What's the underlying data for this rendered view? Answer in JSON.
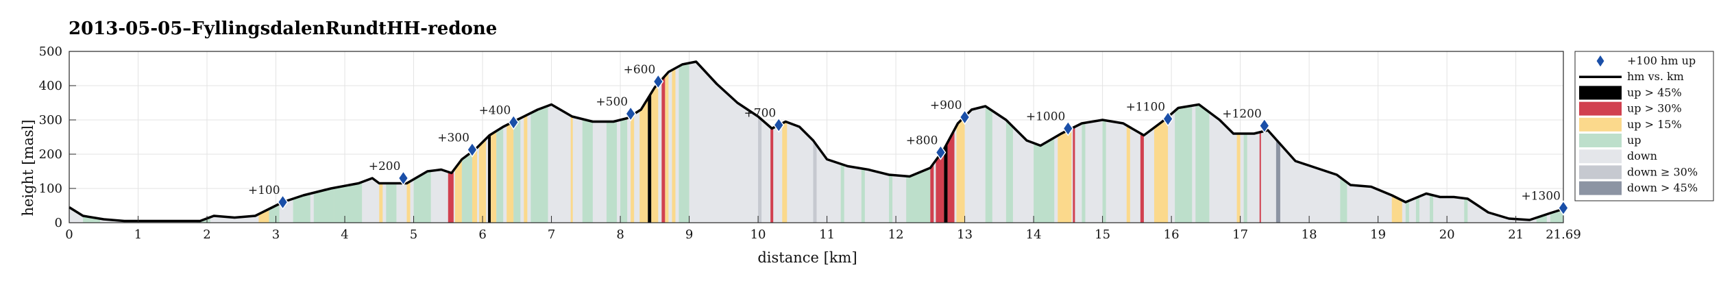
{
  "chart_data": {
    "type": "area",
    "title": "2013-05-05–FyllingsdalenRundtHH-redone",
    "xlabel": "distance [km]",
    "ylabel": "height [masl]",
    "xlim": [
      0,
      21.69
    ],
    "ylim": [
      0,
      500
    ],
    "xticks": [
      "0",
      "1",
      "2",
      "3",
      "4",
      "5",
      "6",
      "7",
      "8",
      "9",
      "10",
      "11",
      "12",
      "13",
      "14",
      "15",
      "16",
      "17",
      "18",
      "19",
      "20",
      "21",
      "21.69"
    ],
    "xtick_values": [
      0,
      1,
      2,
      3,
      4,
      5,
      6,
      7,
      8,
      9,
      10,
      11,
      12,
      13,
      14,
      15,
      16,
      17,
      18,
      19,
      20,
      21,
      21.69
    ],
    "yticks": [
      "0",
      "100",
      "200",
      "300",
      "400",
      "500"
    ],
    "ytick_values": [
      0,
      100,
      200,
      300,
      400,
      500
    ],
    "grid": true,
    "legend_position": "outside-right",
    "profile": {
      "x": [
        0,
        0.2,
        0.5,
        0.8,
        1.0,
        1.3,
        1.6,
        1.9,
        2.1,
        2.4,
        2.7,
        2.9,
        3.1,
        3.4,
        3.8,
        4.2,
        4.4,
        4.5,
        4.9,
        5.2,
        5.4,
        5.55,
        5.7,
        5.9,
        6.1,
        6.3,
        6.5,
        6.8,
        7.0,
        7.3,
        7.6,
        7.9,
        8.1,
        8.3,
        8.5,
        8.7,
        8.9,
        9.1,
        9.4,
        9.7,
        10.0,
        10.2,
        10.4,
        10.6,
        10.8,
        11.0,
        11.3,
        11.6,
        11.9,
        12.2,
        12.5,
        12.7,
        12.9,
        13.1,
        13.3,
        13.6,
        13.9,
        14.1,
        14.4,
        14.7,
        15.0,
        15.3,
        15.6,
        15.9,
        16.1,
        16.4,
        16.7,
        16.9,
        17.2,
        17.4,
        17.6,
        17.8,
        18.1,
        18.4,
        18.6,
        18.9,
        19.2,
        19.4,
        19.7,
        19.9,
        20.1,
        20.3,
        20.6,
        20.9,
        21.2,
        21.5,
        21.69
      ],
      "y": [
        45,
        20,
        10,
        5,
        5,
        5,
        5,
        5,
        20,
        15,
        20,
        40,
        60,
        80,
        100,
        115,
        130,
        115,
        115,
        150,
        155,
        145,
        185,
        215,
        255,
        280,
        300,
        330,
        345,
        310,
        295,
        295,
        305,
        330,
        395,
        440,
        462,
        470,
        405,
        350,
        310,
        275,
        295,
        280,
        240,
        185,
        165,
        155,
        140,
        135,
        160,
        215,
        290,
        330,
        340,
        300,
        240,
        225,
        260,
        290,
        300,
        290,
        255,
        300,
        335,
        345,
        300,
        260,
        260,
        270,
        225,
        180,
        160,
        140,
        110,
        105,
        80,
        60,
        85,
        75,
        75,
        70,
        30,
        12,
        8,
        28,
        40
      ]
    },
    "segments": [
      [
        0,
        0.2,
        "down"
      ],
      [
        0.2,
        0.45,
        "up"
      ],
      [
        0.45,
        1.85,
        "down"
      ],
      [
        1.85,
        2.05,
        "up"
      ],
      [
        2.05,
        2.75,
        "down"
      ],
      [
        2.75,
        2.9,
        "up>15"
      ],
      [
        2.9,
        3.05,
        "up"
      ],
      [
        3.25,
        3.5,
        "up"
      ],
      [
        3.55,
        3.85,
        "up"
      ],
      [
        3.85,
        4.25,
        "up"
      ],
      [
        4.5,
        4.55,
        "up>15"
      ],
      [
        4.6,
        4.75,
        "up"
      ],
      [
        4.9,
        4.95,
        "up>15"
      ],
      [
        5.0,
        5.25,
        "up"
      ],
      [
        5.5,
        5.58,
        "up>30"
      ],
      [
        5.6,
        5.7,
        "up>15"
      ],
      [
        5.7,
        5.85,
        "up"
      ],
      [
        5.85,
        5.92,
        "up>15"
      ],
      [
        5.95,
        6.05,
        "up>15"
      ],
      [
        6.08,
        6.12,
        "up>45"
      ],
      [
        6.12,
        6.2,
        "up>15"
      ],
      [
        6.2,
        6.3,
        "up"
      ],
      [
        6.35,
        6.45,
        "up>15"
      ],
      [
        6.45,
        6.55,
        "up"
      ],
      [
        6.6,
        6.65,
        "up>15"
      ],
      [
        6.7,
        6.95,
        "up"
      ],
      [
        7.28,
        7.31,
        "up>15"
      ],
      [
        7.45,
        7.6,
        "up"
      ],
      [
        7.8,
        7.95,
        "up"
      ],
      [
        8.0,
        8.1,
        "up"
      ],
      [
        8.15,
        8.2,
        "up>15"
      ],
      [
        8.28,
        8.4,
        "up>15"
      ],
      [
        8.4,
        8.45,
        "up>45"
      ],
      [
        8.45,
        8.55,
        "up>15"
      ],
      [
        8.6,
        8.65,
        "up>30"
      ],
      [
        8.65,
        8.7,
        "up>15"
      ],
      [
        8.75,
        8.8,
        "up>15"
      ],
      [
        8.85,
        9.0,
        "up"
      ],
      [
        10.0,
        10.05,
        "down>30"
      ],
      [
        10.18,
        10.22,
        "up>30"
      ],
      [
        10.35,
        10.42,
        "up>15"
      ],
      [
        10.8,
        10.85,
        "down>30"
      ],
      [
        11.2,
        11.25,
        "up"
      ],
      [
        11.5,
        11.55,
        "up"
      ],
      [
        11.9,
        11.95,
        "up"
      ],
      [
        12.15,
        12.5,
        "up"
      ],
      [
        12.5,
        12.55,
        "up>30"
      ],
      [
        12.58,
        12.7,
        "up>30"
      ],
      [
        12.7,
        12.75,
        "up>45"
      ],
      [
        12.75,
        12.85,
        "up>30"
      ],
      [
        12.88,
        13.0,
        "up>15"
      ],
      [
        13.3,
        13.4,
        "up"
      ],
      [
        13.6,
        13.7,
        "up"
      ],
      [
        14.0,
        14.3,
        "up"
      ],
      [
        14.35,
        14.55,
        "up>15"
      ],
      [
        14.57,
        14.6,
        "up>30"
      ],
      [
        14.7,
        14.75,
        "up"
      ],
      [
        15.0,
        15.05,
        "up"
      ],
      [
        15.35,
        15.4,
        "up>15"
      ],
      [
        15.55,
        15.6,
        "up>30"
      ],
      [
        15.75,
        15.8,
        "up>15"
      ],
      [
        15.8,
        15.95,
        "up>15"
      ],
      [
        16.05,
        16.3,
        "up"
      ],
      [
        16.35,
        16.55,
        "up"
      ],
      [
        16.95,
        17.0,
        "up>15"
      ],
      [
        17.05,
        17.1,
        "up"
      ],
      [
        17.28,
        17.3,
        "up>30"
      ],
      [
        17.52,
        17.58,
        "down>45"
      ],
      [
        18.45,
        18.55,
        "up"
      ],
      [
        19.2,
        19.35,
        "up>15"
      ],
      [
        19.4,
        19.45,
        "up"
      ],
      [
        19.55,
        19.6,
        "up"
      ],
      [
        19.75,
        19.8,
        "up"
      ],
      [
        20.25,
        20.3,
        "up"
      ],
      [
        21.3,
        21.45,
        "up"
      ],
      [
        21.5,
        21.69,
        "up"
      ]
    ],
    "markers": [
      {
        "x": 3.1,
        "y": 60,
        "label": "+100"
      },
      {
        "x": 4.85,
        "y": 130,
        "label": "+200"
      },
      {
        "x": 5.85,
        "y": 213,
        "label": "+300"
      },
      {
        "x": 6.45,
        "y": 293,
        "label": "+400"
      },
      {
        "x": 8.15,
        "y": 318,
        "label": "+500"
      },
      {
        "x": 8.55,
        "y": 412,
        "label": "+600"
      },
      {
        "x": 10.3,
        "y": 285,
        "label": "+700"
      },
      {
        "x": 12.65,
        "y": 205,
        "label": "+800"
      },
      {
        "x": 13.0,
        "y": 308,
        "label": "+900"
      },
      {
        "x": 14.5,
        "y": 275,
        "label": "+1000"
      },
      {
        "x": 15.95,
        "y": 303,
        "label": "+1100"
      },
      {
        "x": 17.35,
        "y": 283,
        "label": "+1200"
      },
      {
        "x": 21.69,
        "y": 43,
        "label": "+1300"
      }
    ],
    "legend": [
      {
        "key": "marker",
        "label": "+100 hm up"
      },
      {
        "key": "line",
        "label": "hm vs. km"
      },
      {
        "key": "up>45",
        "label": "up > 45%"
      },
      {
        "key": "up>30",
        "label": "up > 30%"
      },
      {
        "key": "up>15",
        "label": "up > 15%"
      },
      {
        "key": "up",
        "label": "up"
      },
      {
        "key": "down",
        "label": "down"
      },
      {
        "key": "down>30",
        "label": "down ≥ 30%"
      },
      {
        "key": "down>45",
        "label": "down > 45%"
      }
    ],
    "colors": {
      "up>45": "#000000",
      "up>30": "#d1404f",
      "up>15": "#fbd98c",
      "up": "#bddfcb",
      "down": "#e4e6ea",
      "down>30": "#c6c9d0",
      "down>45": "#8c94a3",
      "line": "#000000",
      "marker": "#1a4fa8"
    }
  }
}
